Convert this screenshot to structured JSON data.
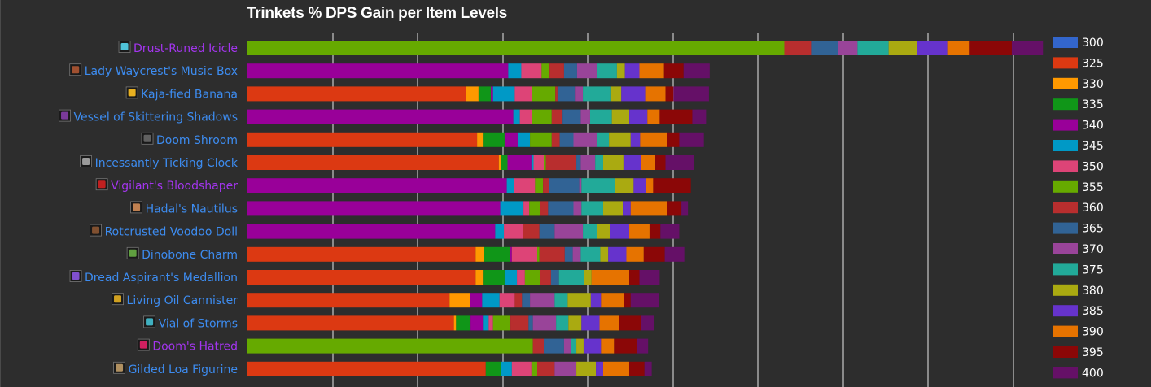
{
  "chart_data": {
    "type": "bar",
    "stacked": true,
    "orientation": "horizontal",
    "title": "Trinkets % DPS Gain per Item Levels",
    "xlim": [
      0,
      11
    ],
    "grid": true,
    "legend_position": "right",
    "series": [
      {
        "name": "300",
        "color": "#3366cc"
      },
      {
        "name": "325",
        "color": "#dc3912"
      },
      {
        "name": "330",
        "color": "#ff9900"
      },
      {
        "name": "335",
        "color": "#109618"
      },
      {
        "name": "340",
        "color": "#990099"
      },
      {
        "name": "345",
        "color": "#0099c6"
      },
      {
        "name": "350",
        "color": "#dd4477"
      },
      {
        "name": "355",
        "color": "#66aa00"
      },
      {
        "name": "360",
        "color": "#b82e2e"
      },
      {
        "name": "365",
        "color": "#316395"
      },
      {
        "name": "370",
        "color": "#994499"
      },
      {
        "name": "375",
        "color": "#22aa99"
      },
      {
        "name": "380",
        "color": "#aaaa11"
      },
      {
        "name": "385",
        "color": "#6633cc"
      },
      {
        "name": "390",
        "color": "#e67300"
      },
      {
        "name": "395",
        "color": "#8b0707"
      },
      {
        "name": "400",
        "color": "#651067"
      }
    ],
    "items": [
      {
        "name": "Drust-Runed Icicle",
        "name_color": "#a335ee",
        "icon_color": "#4fc3d8",
        "segments": [
          {
            "s": "355",
            "v": 7.41
          },
          {
            "s": "360",
            "v": 0.37
          },
          {
            "s": "365",
            "v": 0.37
          },
          {
            "s": "370",
            "v": 0.27
          },
          {
            "s": "375",
            "v": 0.43
          },
          {
            "s": "380",
            "v": 0.39
          },
          {
            "s": "385",
            "v": 0.43
          },
          {
            "s": "390",
            "v": 0.3
          },
          {
            "s": "395",
            "v": 0.58
          },
          {
            "s": "400",
            "v": 0.43
          }
        ]
      },
      {
        "name": "Lady Waycrest's Music Box",
        "name_color": "#3d8cf0",
        "icon_color": "#a05030",
        "segments": [
          {
            "s": "340",
            "v": 3.6
          },
          {
            "s": "345",
            "v": 0.18
          },
          {
            "s": "350",
            "v": 0.28
          },
          {
            "s": "355",
            "v": 0.11
          },
          {
            "s": "360",
            "v": 0.2
          },
          {
            "s": "365",
            "v": 0.18
          },
          {
            "s": "370",
            "v": 0.27
          },
          {
            "s": "375",
            "v": 0.28
          },
          {
            "s": "380",
            "v": 0.11
          },
          {
            "s": "385",
            "v": 0.2
          },
          {
            "s": "390",
            "v": 0.34
          },
          {
            "s": "395",
            "v": 0.27
          },
          {
            "s": "400",
            "v": 0.36
          }
        ]
      },
      {
        "name": "Kaja-fied Banana",
        "name_color": "#3d8cf0",
        "icon_color": "#e8b020",
        "segments": [
          {
            "s": "325",
            "v": 3.02
          },
          {
            "s": "330",
            "v": 0.17
          },
          {
            "s": "335",
            "v": 0.17
          },
          {
            "s": "340",
            "v": 0.03
          },
          {
            "s": "345",
            "v": 0.3
          },
          {
            "s": "350",
            "v": 0.24
          },
          {
            "s": "355",
            "v": 0.32
          },
          {
            "s": "360",
            "v": 0.03
          },
          {
            "s": "365",
            "v": 0.25
          },
          {
            "s": "370",
            "v": 0.1
          },
          {
            "s": "375",
            "v": 0.38
          },
          {
            "s": "380",
            "v": 0.15
          },
          {
            "s": "385",
            "v": 0.33
          },
          {
            "s": "390",
            "v": 0.28
          },
          {
            "s": "395",
            "v": 0.11
          },
          {
            "s": "400",
            "v": 0.49
          }
        ]
      },
      {
        "name": "Vessel of Skittering Shadows",
        "name_color": "#3d8cf0",
        "icon_color": "#7a3a9a",
        "segments": [
          {
            "s": "340",
            "v": 3.67
          },
          {
            "s": "345",
            "v": 0.09
          },
          {
            "s": "350",
            "v": 0.17
          },
          {
            "s": "355",
            "v": 0.27
          },
          {
            "s": "360",
            "v": 0.15
          },
          {
            "s": "365",
            "v": 0.25
          },
          {
            "s": "370",
            "v": 0.13
          },
          {
            "s": "375",
            "v": 0.3
          },
          {
            "s": "380",
            "v": 0.24
          },
          {
            "s": "385",
            "v": 0.25
          },
          {
            "s": "390",
            "v": 0.17
          },
          {
            "s": "395",
            "v": 0.45
          },
          {
            "s": "400",
            "v": 0.19
          }
        ]
      },
      {
        "name": "Doom Shroom",
        "name_color": "#3d8cf0",
        "icon_color": "#606060",
        "segments": [
          {
            "s": "325",
            "v": 3.17
          },
          {
            "s": "330",
            "v": 0.08
          },
          {
            "s": "335",
            "v": 0.3
          },
          {
            "s": "340",
            "v": 0.18
          },
          {
            "s": "345",
            "v": 0.17
          },
          {
            "s": "355",
            "v": 0.3
          },
          {
            "s": "360",
            "v": 0.11
          },
          {
            "s": "365",
            "v": 0.19
          },
          {
            "s": "370",
            "v": 0.32
          },
          {
            "s": "375",
            "v": 0.17
          },
          {
            "s": "380",
            "v": 0.3
          },
          {
            "s": "385",
            "v": 0.13
          },
          {
            "s": "390",
            "v": 0.37
          },
          {
            "s": "395",
            "v": 0.17
          },
          {
            "s": "400",
            "v": 0.34
          }
        ]
      },
      {
        "name": "Incessantly Ticking Clock",
        "name_color": "#3d8cf0",
        "icon_color": "#9a9a9a",
        "segments": [
          {
            "s": "325",
            "v": 3.47
          },
          {
            "s": "330",
            "v": 0.03
          },
          {
            "s": "335",
            "v": 0.09
          },
          {
            "s": "340",
            "v": 0.33
          },
          {
            "s": "345",
            "v": 0.03
          },
          {
            "s": "350",
            "v": 0.14
          },
          {
            "s": "355",
            "v": 0.03
          },
          {
            "s": "360",
            "v": 0.42
          },
          {
            "s": "365",
            "v": 0.06
          },
          {
            "s": "370",
            "v": 0.2
          },
          {
            "s": "375",
            "v": 0.11
          },
          {
            "s": "380",
            "v": 0.28
          },
          {
            "s": "385",
            "v": 0.24
          },
          {
            "s": "390",
            "v": 0.2
          },
          {
            "s": "395",
            "v": 0.14
          },
          {
            "s": "400",
            "v": 0.39
          }
        ]
      },
      {
        "name": "Vigilant's Bloodshaper",
        "name_color": "#a335ee",
        "icon_color": "#c02020",
        "segments": [
          {
            "s": "340",
            "v": 3.58
          },
          {
            "s": "345",
            "v": 0.1
          },
          {
            "s": "350",
            "v": 0.29
          },
          {
            "s": "355",
            "v": 0.11
          },
          {
            "s": "360",
            "v": 0.08
          },
          {
            "s": "365",
            "v": 0.42
          },
          {
            "s": "370",
            "v": 0.03
          },
          {
            "s": "375",
            "v": 0.46
          },
          {
            "s": "380",
            "v": 0.26
          },
          {
            "s": "385",
            "v": 0.17
          },
          {
            "s": "390",
            "v": 0.1
          },
          {
            "s": "395",
            "v": 0.52
          }
        ]
      },
      {
        "name": "Hadal's Nautilus",
        "name_color": "#3d8cf0",
        "icon_color": "#c08050",
        "segments": [
          {
            "s": "340",
            "v": 3.49
          },
          {
            "s": "345",
            "v": 0.32
          },
          {
            "s": "350",
            "v": 0.08
          },
          {
            "s": "355",
            "v": 0.15
          },
          {
            "s": "360",
            "v": 0.11
          },
          {
            "s": "365",
            "v": 0.35
          },
          {
            "s": "370",
            "v": 0.11
          },
          {
            "s": "375",
            "v": 0.3
          },
          {
            "s": "380",
            "v": 0.27
          },
          {
            "s": "385",
            "v": 0.11
          },
          {
            "s": "390",
            "v": 0.5
          },
          {
            "s": "395",
            "v": 0.2
          },
          {
            "s": "400",
            "v": 0.09
          }
        ]
      },
      {
        "name": "Rotcrusted Voodoo Doll",
        "name_color": "#3d8cf0",
        "icon_color": "#805030",
        "segments": [
          {
            "s": "340",
            "v": 3.42
          },
          {
            "s": "345",
            "v": 0.12
          },
          {
            "s": "350",
            "v": 0.26
          },
          {
            "s": "360",
            "v": 0.23
          },
          {
            "s": "365",
            "v": 0.21
          },
          {
            "s": "370",
            "v": 0.39
          },
          {
            "s": "375",
            "v": 0.2
          },
          {
            "s": "380",
            "v": 0.17
          },
          {
            "s": "385",
            "v": 0.27
          },
          {
            "s": "390",
            "v": 0.28
          },
          {
            "s": "395",
            "v": 0.15
          },
          {
            "s": "400",
            "v": 0.26
          }
        ]
      },
      {
        "name": "Dinobone Charm",
        "name_color": "#3d8cf0",
        "icon_color": "#60a040",
        "segments": [
          {
            "s": "325",
            "v": 3.15
          },
          {
            "s": "330",
            "v": 0.11
          },
          {
            "s": "335",
            "v": 0.36
          },
          {
            "s": "340",
            "v": 0.03
          },
          {
            "s": "350",
            "v": 0.35
          },
          {
            "s": "355",
            "v": 0.03
          },
          {
            "s": "360",
            "v": 0.35
          },
          {
            "s": "365",
            "v": 0.11
          },
          {
            "s": "370",
            "v": 0.11
          },
          {
            "s": "375",
            "v": 0.27
          },
          {
            "s": "380",
            "v": 0.11
          },
          {
            "s": "385",
            "v": 0.25
          },
          {
            "s": "390",
            "v": 0.24
          },
          {
            "s": "395",
            "v": 0.29
          },
          {
            "s": "400",
            "v": 0.27
          }
        ]
      },
      {
        "name": "Dread Aspirant's Medallion",
        "name_color": "#3d8cf0",
        "icon_color": "#8050d0",
        "segments": [
          {
            "s": "325",
            "v": 3.15
          },
          {
            "s": "330",
            "v": 0.1
          },
          {
            "s": "335",
            "v": 0.3
          },
          {
            "s": "345",
            "v": 0.17
          },
          {
            "s": "350",
            "v": 0.11
          },
          {
            "s": "355",
            "v": 0.21
          },
          {
            "s": "360",
            "v": 0.15
          },
          {
            "s": "365",
            "v": 0.11
          },
          {
            "s": "375",
            "v": 0.35
          },
          {
            "s": "380",
            "v": 0.1
          },
          {
            "s": "390",
            "v": 0.52
          },
          {
            "s": "395",
            "v": 0.14
          },
          {
            "s": "400",
            "v": 0.28
          }
        ]
      },
      {
        "name": "Living Oil Cannister",
        "name_color": "#3d8cf0",
        "icon_color": "#d0a020",
        "segments": [
          {
            "s": "325",
            "v": 2.79
          },
          {
            "s": "330",
            "v": 0.28
          },
          {
            "s": "340",
            "v": 0.17
          },
          {
            "s": "345",
            "v": 0.24
          },
          {
            "s": "350",
            "v": 0.21
          },
          {
            "s": "360",
            "v": 0.1
          },
          {
            "s": "365",
            "v": 0.11
          },
          {
            "s": "370",
            "v": 0.34
          },
          {
            "s": "375",
            "v": 0.18
          },
          {
            "s": "380",
            "v": 0.32
          },
          {
            "s": "385",
            "v": 0.14
          },
          {
            "s": "390",
            "v": 0.32
          },
          {
            "s": "395",
            "v": 0.09
          },
          {
            "s": "400",
            "v": 0.39
          }
        ]
      },
      {
        "name": "Vial of Storms",
        "name_color": "#3d8cf0",
        "icon_color": "#40b0c0",
        "segments": [
          {
            "s": "325",
            "v": 2.85
          },
          {
            "s": "330",
            "v": 0.03
          },
          {
            "s": "335",
            "v": 0.2
          },
          {
            "s": "340",
            "v": 0.17
          },
          {
            "s": "345",
            "v": 0.08
          },
          {
            "s": "350",
            "v": 0.06
          },
          {
            "s": "355",
            "v": 0.24
          },
          {
            "s": "360",
            "v": 0.25
          },
          {
            "s": "365",
            "v": 0.06
          },
          {
            "s": "370",
            "v": 0.32
          },
          {
            "s": "375",
            "v": 0.17
          },
          {
            "s": "380",
            "v": 0.18
          },
          {
            "s": "385",
            "v": 0.25
          },
          {
            "s": "390",
            "v": 0.27
          },
          {
            "s": "395",
            "v": 0.3
          },
          {
            "s": "400",
            "v": 0.18
          }
        ]
      },
      {
        "name": "Doom's Hatred",
        "name_color": "#a335ee",
        "icon_color": "#d02060",
        "segments": [
          {
            "s": "355",
            "v": 3.94
          },
          {
            "s": "360",
            "v": 0.15
          },
          {
            "s": "365",
            "v": 0.28
          },
          {
            "s": "370",
            "v": 0.1
          },
          {
            "s": "375",
            "v": 0.07
          },
          {
            "s": "380",
            "v": 0.1
          },
          {
            "s": "385",
            "v": 0.24
          },
          {
            "s": "390",
            "v": 0.18
          },
          {
            "s": "395",
            "v": 0.32
          },
          {
            "s": "400",
            "v": 0.15
          }
        ]
      },
      {
        "name": "Gilded Loa Figurine",
        "name_color": "#3d8cf0",
        "icon_color": "#b09060",
        "segments": [
          {
            "s": "325",
            "v": 3.29
          },
          {
            "s": "335",
            "v": 0.21
          },
          {
            "s": "345",
            "v": 0.15
          },
          {
            "s": "350",
            "v": 0.27
          },
          {
            "s": "355",
            "v": 0.08
          },
          {
            "s": "360",
            "v": 0.24
          },
          {
            "s": "370",
            "v": 0.3
          },
          {
            "s": "380",
            "v": 0.27
          },
          {
            "s": "385",
            "v": 0.1
          },
          {
            "s": "390",
            "v": 0.36
          },
          {
            "s": "395",
            "v": 0.21
          },
          {
            "s": "400",
            "v": 0.1
          }
        ]
      }
    ]
  }
}
